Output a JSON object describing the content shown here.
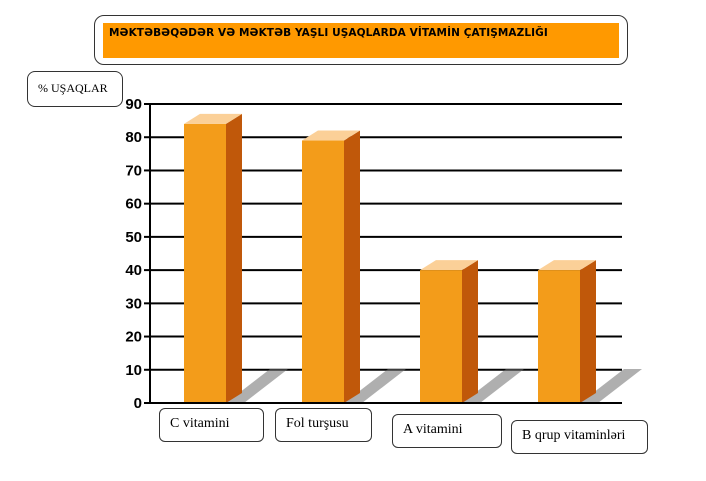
{
  "chart_data": {
    "type": "bar",
    "title": "MƏKTƏBƏQƏDƏR VƏ MƏKTƏB YAŞLI UŞAQLARDA VİTAMİN ÇATIŞMAZLIĞI",
    "ylabel": "% UŞAQLAR",
    "xlabel": "",
    "categories": [
      "C vitamini",
      "Fol turşusu",
      "A vitamini",
      "B qrup vitaminləri"
    ],
    "values": [
      84,
      79,
      40,
      40
    ],
    "ylim": [
      0,
      90
    ],
    "yticks": [
      0,
      10,
      20,
      30,
      40,
      50,
      60,
      70,
      80,
      90
    ],
    "grid": true,
    "colors": {
      "bar_front": "#f39c1a",
      "bar_side": "#c0580a",
      "bar_top": "#fbd098",
      "grid": "#000000",
      "title_bg": "#ff9900"
    }
  }
}
